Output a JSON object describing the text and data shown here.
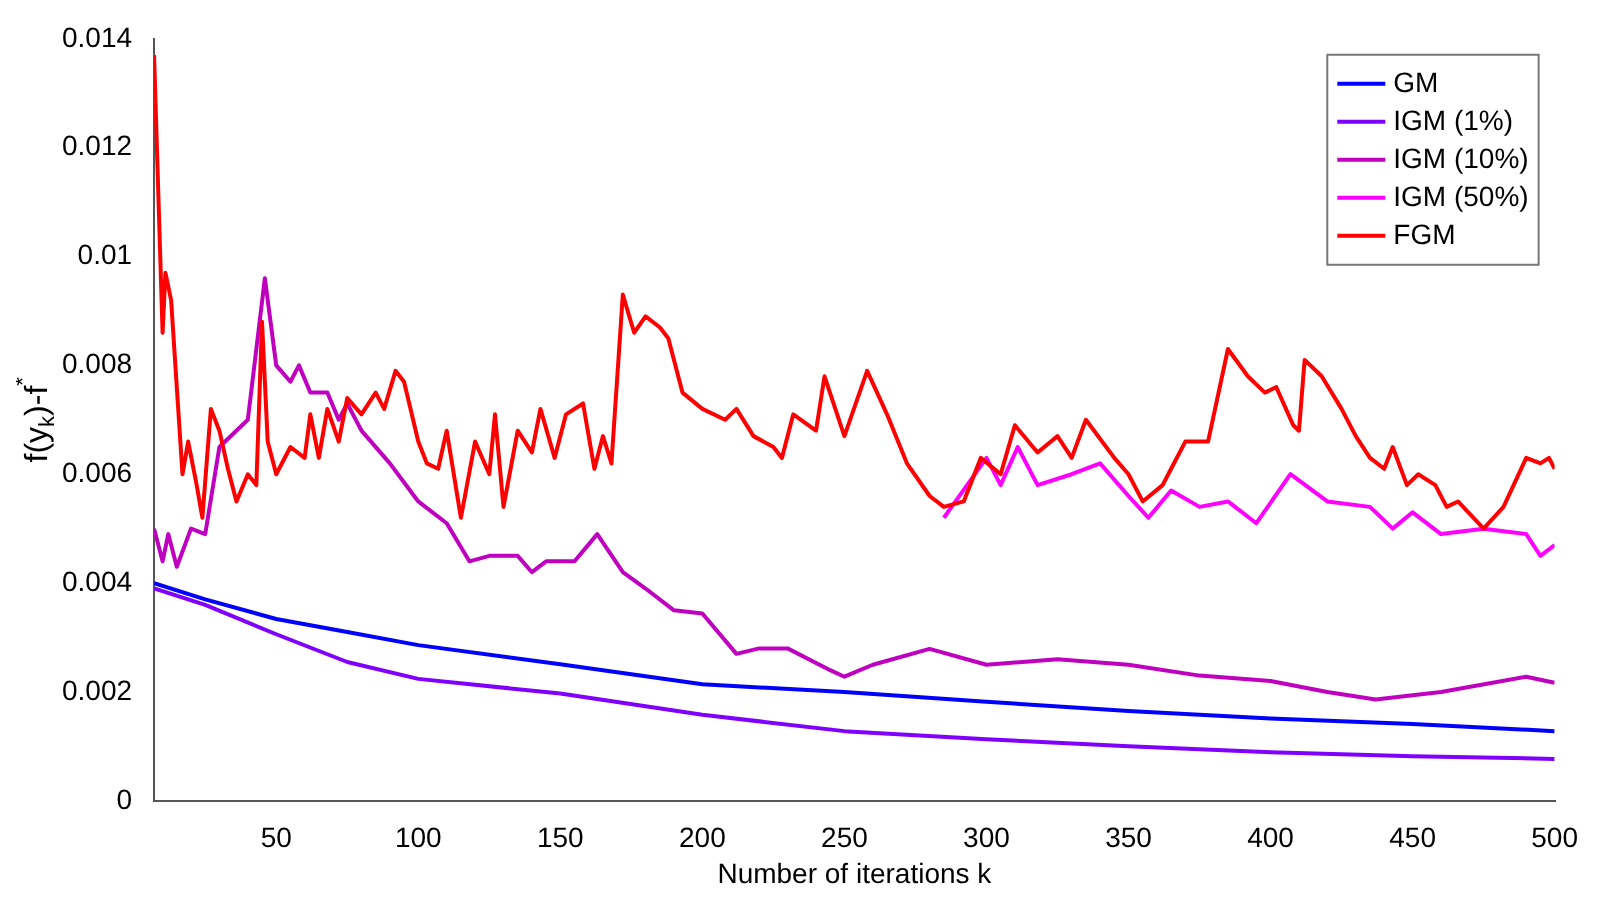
{
  "chart_data": {
    "type": "line",
    "xlabel": "Number of iterations k",
    "ylabel": "f(y$_{k}$)-f$^{*}$",
    "xlim": [
      7,
      500
    ],
    "ylim": [
      0,
      0.014
    ],
    "xticks": [
      50,
      100,
      150,
      200,
      250,
      300,
      350,
      400,
      450,
      500
    ],
    "yticks": [
      0,
      0.002,
      0.004,
      0.006,
      0.008,
      0.01,
      0.012,
      0.014
    ],
    "grid": false,
    "legend": "top right",
    "marker": "none",
    "line_style": "solid",
    "series": [
      {
        "name": "GM",
        "color": "#0000ff",
        "x": [
          7,
          25,
          50,
          75,
          100,
          150,
          200,
          250,
          300,
          350,
          400,
          450,
          500
        ],
        "values": [
          0.004,
          0.0037,
          0.00334,
          0.0031,
          0.00286,
          0.00251,
          0.00214,
          0.002,
          0.00182,
          0.00165,
          0.00151,
          0.00141,
          0.00128
        ]
      },
      {
        "name": "IGM (1%)",
        "color": "#8000ff",
        "x": [
          7,
          25,
          50,
          75,
          100,
          150,
          200,
          250,
          300,
          350,
          400,
          450,
          500
        ],
        "values": [
          0.0039,
          0.0036,
          0.00306,
          0.00255,
          0.00224,
          0.00197,
          0.00158,
          0.00128,
          0.00113,
          0.001,
          0.00089,
          0.00082,
          0.00077
        ]
      },
      {
        "name": "IGM (10%)",
        "color": "#bf00bf",
        "x": [
          7,
          10,
          12,
          15,
          20,
          25,
          30,
          40,
          46,
          50,
          55,
          58,
          62,
          68,
          72,
          75,
          80,
          90,
          100,
          110,
          118,
          125,
          135,
          140,
          145,
          155,
          163,
          172,
          180,
          190,
          200,
          212,
          220,
          230,
          245,
          250,
          260,
          280,
          300,
          325,
          350,
          375,
          400,
          420,
          437,
          460,
          490,
          500
        ],
        "values": [
          0.005,
          0.0044,
          0.0049,
          0.0043,
          0.005,
          0.0049,
          0.0065,
          0.007,
          0.0096,
          0.008,
          0.0077,
          0.008,
          0.0075,
          0.0075,
          0.007,
          0.0073,
          0.0068,
          0.0062,
          0.0055,
          0.0051,
          0.0044,
          0.0045,
          0.0045,
          0.0042,
          0.0044,
          0.0044,
          0.0049,
          0.0042,
          0.0039,
          0.0035,
          0.00344,
          0.0027,
          0.0028,
          0.0028,
          0.0024,
          0.00228,
          0.0025,
          0.00279,
          0.0025,
          0.0026,
          0.0025,
          0.0023,
          0.0022,
          0.002,
          0.00186,
          0.002,
          0.00228,
          0.00217
        ]
      },
      {
        "name": "IGM (50%)",
        "color": "#ff00ff",
        "x": [
          285,
          300,
          305,
          311,
          318,
          330,
          340,
          350,
          357,
          365,
          375,
          385,
          395,
          407,
          420,
          435,
          443,
          450,
          460,
          475,
          490,
          495,
          500
        ],
        "values": [
          0.0052,
          0.0063,
          0.0058,
          0.0065,
          0.0058,
          0.006,
          0.0062,
          0.0056,
          0.0052,
          0.0057,
          0.0054,
          0.0055,
          0.0051,
          0.006,
          0.0055,
          0.0054,
          0.005,
          0.0053,
          0.0049,
          0.005,
          0.0049,
          0.0045,
          0.0047
        ]
      },
      {
        "name": "FGM",
        "color": "#ff0000",
        "x": [
          7,
          10,
          11,
          13,
          17,
          19,
          22,
          24,
          27,
          30,
          33,
          36,
          40,
          43,
          45,
          47,
          50,
          55,
          60,
          62,
          65,
          68,
          72,
          75,
          80,
          85,
          88,
          92,
          95,
          100,
          103,
          107,
          110,
          115,
          120,
          125,
          127,
          130,
          135,
          140,
          143,
          148,
          152,
          158,
          162,
          165,
          168,
          172,
          176,
          180,
          185,
          188,
          193,
          200,
          208,
          212,
          218,
          225,
          228,
          232,
          240,
          243,
          250,
          258,
          265,
          272,
          280,
          285,
          292,
          298,
          305,
          310,
          318,
          325,
          330,
          335,
          345,
          350,
          355,
          362,
          365,
          370,
          378,
          385,
          392,
          398,
          402,
          408,
          410,
          412,
          418,
          425,
          430,
          435,
          440,
          443,
          448,
          452,
          458,
          462,
          466,
          475,
          482,
          490,
          495,
          498,
          500
        ],
        "values": [
          0.0137,
          0.0086,
          0.0097,
          0.0092,
          0.006,
          0.0066,
          0.0058,
          0.0052,
          0.0072,
          0.0068,
          0.0061,
          0.0055,
          0.006,
          0.0058,
          0.0088,
          0.0066,
          0.006,
          0.0065,
          0.0063,
          0.0071,
          0.0063,
          0.0072,
          0.0066,
          0.0074,
          0.0071,
          0.0075,
          0.0072,
          0.0079,
          0.0077,
          0.0066,
          0.0062,
          0.0061,
          0.0068,
          0.0052,
          0.0066,
          0.006,
          0.0071,
          0.0054,
          0.0068,
          0.0064,
          0.0072,
          0.0063,
          0.0071,
          0.0073,
          0.0061,
          0.0067,
          0.0062,
          0.0093,
          0.0086,
          0.0089,
          0.0087,
          0.0085,
          0.0075,
          0.0072,
          0.007,
          0.0072,
          0.0067,
          0.0065,
          0.0063,
          0.0071,
          0.0068,
          0.0078,
          0.0067,
          0.0079,
          0.0071,
          0.0062,
          0.0056,
          0.0054,
          0.0055,
          0.0063,
          0.006,
          0.0069,
          0.0064,
          0.0067,
          0.0063,
          0.007,
          0.0063,
          0.006,
          0.0055,
          0.0058,
          0.0061,
          0.0066,
          0.0066,
          0.0083,
          0.0078,
          0.0075,
          0.0076,
          0.0069,
          0.0068,
          0.0081,
          0.0078,
          0.0072,
          0.0067,
          0.0063,
          0.0061,
          0.0065,
          0.0058,
          0.006,
          0.0058,
          0.0054,
          0.0055,
          0.005,
          0.0054,
          0.0063,
          0.0062,
          0.0063,
          0.0061
        ]
      }
    ]
  }
}
